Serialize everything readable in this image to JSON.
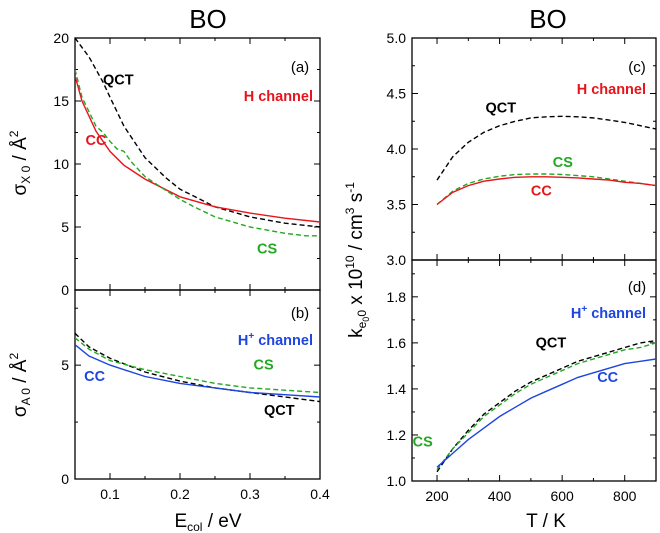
{
  "colors": {
    "QCT": "#000000",
    "CS": "#22a822",
    "CC_H": "#e8141c",
    "CC_Hp": "#1f45e0"
  },
  "figure": {
    "left_title": "BO",
    "right_title": "BO",
    "left_xlabel": "E",
    "left_xlabel_sub": "col",
    "left_xlabel_unit": " / eV",
    "right_xlabel": "T / K",
    "top_left_ylabel": {
      "sym": "σ",
      "sub": "X 0",
      "unit": " / Å",
      "sup": "2"
    },
    "bottom_left_ylabel": {
      "sym": "σ",
      "sub": "A 0",
      "unit": " / Å",
      "sup": "2"
    },
    "right_ylabel": {
      "k": "k",
      "sub1": "e",
      "sub2": "0",
      "sub3": "0",
      "mid": " x 10",
      "sup": "10",
      "mid2": " / cm",
      "sup2": "3",
      "mid3": " s",
      "sup3": "-1"
    }
  },
  "chart_data": [
    {
      "id": "a",
      "type": "line",
      "panel_label": "(a)",
      "channel": {
        "text": "H channel",
        "sup": "",
        "color": "#e8141c"
      },
      "xlim": [
        0.05,
        0.4
      ],
      "ylim": [
        0,
        20
      ],
      "xticks": [
        0.1,
        0.2,
        0.3,
        0.4
      ],
      "xticklabels": [],
      "yticks": [
        0,
        5,
        10,
        15,
        20
      ],
      "yticklabels": [
        "0",
        "5",
        "10",
        "15",
        "20"
      ],
      "minor_x": [
        0.05,
        0.15,
        0.25,
        0.35
      ],
      "minor_y": [
        2.5,
        7.5,
        12.5,
        17.5
      ],
      "series": [
        {
          "name": "QCT",
          "color": "#000000",
          "dash": "5,3",
          "x": [
            0.05,
            0.07,
            0.09,
            0.1,
            0.12,
            0.15,
            0.18,
            0.2,
            0.25,
            0.3,
            0.35,
            0.4
          ],
          "y": [
            20.0,
            18.5,
            16.5,
            15.3,
            13.0,
            10.5,
            8.9,
            8.0,
            6.6,
            5.8,
            5.3,
            5.0
          ]
        },
        {
          "name": "CC",
          "color": "#e8141c",
          "dash": "",
          "x": [
            0.05,
            0.06,
            0.08,
            0.1,
            0.12,
            0.15,
            0.2,
            0.25,
            0.3,
            0.35,
            0.4
          ],
          "y": [
            17.0,
            15.0,
            12.6,
            11.0,
            9.9,
            8.8,
            7.4,
            6.6,
            6.1,
            5.7,
            5.4
          ]
        },
        {
          "name": "CS",
          "color": "#22a822",
          "dash": "5,3",
          "x": [
            0.05,
            0.06,
            0.08,
            0.09,
            0.1,
            0.11,
            0.12,
            0.13,
            0.15,
            0.18,
            0.2,
            0.22,
            0.25,
            0.3,
            0.35,
            0.38,
            0.4
          ],
          "y": [
            17.5,
            15.3,
            13.0,
            12.5,
            11.8,
            11.2,
            11.0,
            10.2,
            9.0,
            7.9,
            7.2,
            6.6,
            5.8,
            5.0,
            4.5,
            4.3,
            4.3
          ]
        }
      ],
      "labels": [
        {
          "text": "QCT",
          "color": "#000000",
          "x": 0.09,
          "y": 16.3
        },
        {
          "text": "CC",
          "color": "#e8141c",
          "x": 0.065,
          "y": 11.5
        },
        {
          "text": "CS",
          "color": "#22a822",
          "x": 0.31,
          "y": 2.9
        }
      ]
    },
    {
      "id": "b",
      "type": "line",
      "panel_label": "(b)",
      "channel": {
        "text": "H",
        "sup": "+",
        "tail": " channel",
        "color": "#1f45e0"
      },
      "xlim": [
        0.05,
        0.4
      ],
      "ylim": [
        0,
        8.3
      ],
      "xticks": [
        0.1,
        0.2,
        0.3,
        0.4
      ],
      "xticklabels": [
        "0.1",
        "0.2",
        "0.3",
        "0.4"
      ],
      "yticks": [
        0,
        5
      ],
      "yticklabels": [
        "0",
        "5"
      ],
      "minor_x": [
        0.05,
        0.15,
        0.25,
        0.35
      ],
      "minor_y": [
        2.5,
        7.5
      ],
      "series": [
        {
          "name": "QCT",
          "color": "#000000",
          "dash": "5,3",
          "x": [
            0.05,
            0.07,
            0.1,
            0.15,
            0.2,
            0.25,
            0.3,
            0.35,
            0.4
          ],
          "y": [
            6.4,
            5.8,
            5.3,
            4.7,
            4.3,
            4.0,
            3.8,
            3.6,
            3.4
          ]
        },
        {
          "name": "CC",
          "color": "#1f45e0",
          "dash": "",
          "x": [
            0.05,
            0.07,
            0.1,
            0.15,
            0.2,
            0.25,
            0.3,
            0.35,
            0.4
          ],
          "y": [
            5.9,
            5.4,
            5.0,
            4.5,
            4.2,
            4.0,
            3.8,
            3.7,
            3.6
          ]
        },
        {
          "name": "CS",
          "color": "#22a822",
          "dash": "5,3",
          "x": [
            0.05,
            0.07,
            0.1,
            0.15,
            0.2,
            0.25,
            0.3,
            0.35,
            0.4
          ],
          "y": [
            6.2,
            5.7,
            5.2,
            4.8,
            4.5,
            4.2,
            4.0,
            3.9,
            3.8
          ]
        }
      ],
      "labels": [
        {
          "text": "CS",
          "color": "#22a822",
          "x": 0.305,
          "y": 4.8
        },
        {
          "text": "CC",
          "color": "#1f45e0",
          "x": 0.063,
          "y": 4.3
        },
        {
          "text": "QCT",
          "color": "#000000",
          "x": 0.32,
          "y": 2.8
        }
      ]
    },
    {
      "id": "c",
      "type": "line",
      "panel_label": "(c)",
      "channel": {
        "text": "H channel",
        "sup": "",
        "color": "#e8141c"
      },
      "xlim": [
        120,
        900
      ],
      "ylim": [
        3.0,
        5.0
      ],
      "xticks": [
        200,
        400,
        600,
        800
      ],
      "xticklabels": [],
      "yticks": [
        3.0,
        3.5,
        4.0,
        4.5,
        5.0
      ],
      "yticklabels": [
        "3.0",
        "3.5",
        "4.0",
        "4.5",
        "5.0"
      ],
      "minor_x": [
        300,
        500,
        700,
        900
      ],
      "minor_y": [
        3.25,
        3.75,
        4.25,
        4.75
      ],
      "series": [
        {
          "name": "QCT",
          "color": "#000000",
          "dash": "5,3",
          "x": [
            200,
            250,
            300,
            350,
            400,
            450,
            500,
            550,
            600,
            650,
            700,
            750,
            800,
            850,
            900
          ],
          "y": [
            3.72,
            3.93,
            4.06,
            4.15,
            4.21,
            4.25,
            4.28,
            4.29,
            4.295,
            4.29,
            4.28,
            4.26,
            4.24,
            4.21,
            4.18
          ]
        },
        {
          "name": "CS",
          "color": "#22a822",
          "dash": "5,3",
          "x": [
            200,
            250,
            300,
            350,
            400,
            450,
            500,
            550,
            600,
            650,
            700,
            750,
            800,
            850,
            900
          ],
          "y": [
            3.5,
            3.62,
            3.69,
            3.73,
            3.755,
            3.77,
            3.775,
            3.775,
            3.77,
            3.76,
            3.75,
            3.73,
            3.71,
            3.69,
            3.67
          ]
        },
        {
          "name": "CC",
          "color": "#e8141c",
          "dash": "",
          "x": [
            200,
            250,
            300,
            350,
            400,
            450,
            500,
            550,
            600,
            650,
            700,
            750,
            800,
            850,
            900
          ],
          "y": [
            3.5,
            3.61,
            3.67,
            3.71,
            3.73,
            3.745,
            3.75,
            3.75,
            3.745,
            3.74,
            3.73,
            3.72,
            3.7,
            3.69,
            3.67
          ]
        }
      ],
      "labels": [
        {
          "text": "QCT",
          "color": "#000000",
          "x": 355,
          "y": 4.33
        },
        {
          "text": "CS",
          "color": "#22a822",
          "x": 570,
          "y": 3.84
        },
        {
          "text": "CC",
          "color": "#e8141c",
          "x": 500,
          "y": 3.58
        }
      ]
    },
    {
      "id": "d",
      "type": "line",
      "panel_label": "(d)",
      "channel": {
        "text": "H",
        "sup": "+",
        "tail": " channel",
        "color": "#1f45e0"
      },
      "xlim": [
        120,
        900
      ],
      "ylim": [
        1.0,
        1.96
      ],
      "xticks": [
        200,
        400,
        600,
        800
      ],
      "xticklabels": [
        "200",
        "400",
        "600",
        "800"
      ],
      "yticks": [
        1.0,
        1.2,
        1.4,
        1.6,
        1.8
      ],
      "yticklabels": [
        "1.0",
        "1.2",
        "1.4",
        "1.6",
        "1.8"
      ],
      "minor_x": [
        300,
        500,
        700,
        900
      ],
      "minor_y": [
        1.1,
        1.3,
        1.5,
        1.7,
        1.9
      ],
      "series": [
        {
          "name": "QCT",
          "color": "#000000",
          "dash": "5,3",
          "x": [
            200,
            250,
            300,
            350,
            400,
            450,
            500,
            550,
            600,
            650,
            700,
            750,
            800,
            850,
            900
          ],
          "y": [
            1.04,
            1.14,
            1.22,
            1.29,
            1.34,
            1.39,
            1.43,
            1.46,
            1.49,
            1.52,
            1.54,
            1.56,
            1.58,
            1.6,
            1.61
          ]
        },
        {
          "name": "CS",
          "color": "#22a822",
          "dash": "5,3",
          "x": [
            200,
            250,
            300,
            350,
            400,
            450,
            500,
            550,
            600,
            650,
            700,
            750,
            800,
            850,
            900
          ],
          "y": [
            1.05,
            1.14,
            1.21,
            1.28,
            1.33,
            1.38,
            1.42,
            1.45,
            1.48,
            1.51,
            1.53,
            1.55,
            1.57,
            1.58,
            1.6
          ]
        },
        {
          "name": "CC",
          "color": "#1f45e0",
          "dash": "",
          "x": [
            200,
            250,
            300,
            350,
            400,
            450,
            500,
            550,
            600,
            650,
            700,
            750,
            800,
            850,
            900
          ],
          "y": [
            1.06,
            1.12,
            1.18,
            1.23,
            1.28,
            1.32,
            1.36,
            1.39,
            1.42,
            1.45,
            1.47,
            1.49,
            1.51,
            1.52,
            1.53
          ]
        }
      ],
      "labels": [
        {
          "text": "QCT",
          "color": "#000000",
          "x": 515,
          "y": 1.58
        },
        {
          "text": "CC",
          "color": "#1f45e0",
          "x": 712,
          "y": 1.43
        },
        {
          "text": "CS",
          "color": "#22a822",
          "x": 122,
          "y": 1.15
        }
      ]
    }
  ]
}
